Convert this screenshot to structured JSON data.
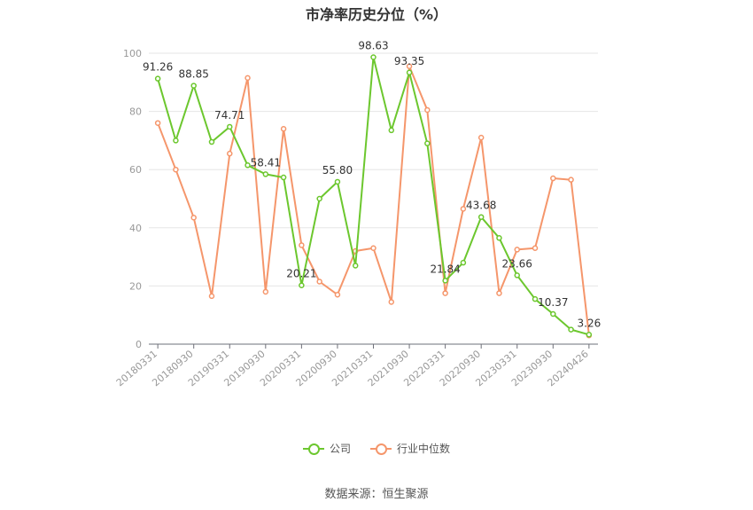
{
  "title": "市净率历史分位（%）",
  "source": "数据来源：恒生聚源",
  "colors": {
    "company": "#6cc72e",
    "industry": "#f5966b",
    "grid": "#e6e6e6",
    "axis": "#999999"
  },
  "chart_data": {
    "type": "line",
    "title": "市净率历史分位（%）",
    "ylim": [
      0,
      100
    ],
    "yticks": [
      0,
      20,
      40,
      60,
      80,
      100
    ],
    "grid": true,
    "legend_position": "bottom",
    "x": [
      "20180331",
      "20180630",
      "20180930",
      "20181231",
      "20190331",
      "20190630",
      "20190930",
      "20191231",
      "20200331",
      "20200630",
      "20200930",
      "20201231",
      "20210331",
      "20210630",
      "20210930",
      "20211231",
      "20220331",
      "20220630",
      "20220930",
      "20221231",
      "20230331",
      "20230630",
      "20230930",
      "20231231",
      "20240426"
    ],
    "xtick_labels": [
      "20180331",
      "20180930",
      "20190331",
      "20190930",
      "20200331",
      "20200930",
      "20210331",
      "20210930",
      "20220331",
      "20220930",
      "20230331",
      "20230930",
      "20240426"
    ],
    "series": [
      {
        "name": "公司",
        "values": [
          91.26,
          70.0,
          88.85,
          69.5,
          74.71,
          61.5,
          58.41,
          57.3,
          20.21,
          50.0,
          55.8,
          27.0,
          98.63,
          73.5,
          93.35,
          69.0,
          21.84,
          28.0,
          43.68,
          36.5,
          23.66,
          15.5,
          10.37,
          5.0,
          3.26
        ],
        "labels": {
          "0": "91.26",
          "2": "88.85",
          "4": "74.71",
          "6": "58.41",
          "8": "20.21",
          "10": "55.80",
          "12": "98.63",
          "14": "93.35",
          "16": "21.84",
          "18": "43.68",
          "20": "23.66",
          "22": "10.37",
          "24": "3.26"
        }
      },
      {
        "name": "行业中位数",
        "values": [
          76.0,
          60.0,
          43.5,
          16.5,
          65.5,
          91.5,
          18.0,
          74.0,
          34.0,
          21.5,
          17.0,
          32.0,
          33.0,
          14.5,
          95.5,
          80.5,
          17.5,
          46.5,
          71.0,
          17.5,
          32.5,
          33.0,
          57.0,
          56.5,
          3.0
        ]
      }
    ]
  }
}
